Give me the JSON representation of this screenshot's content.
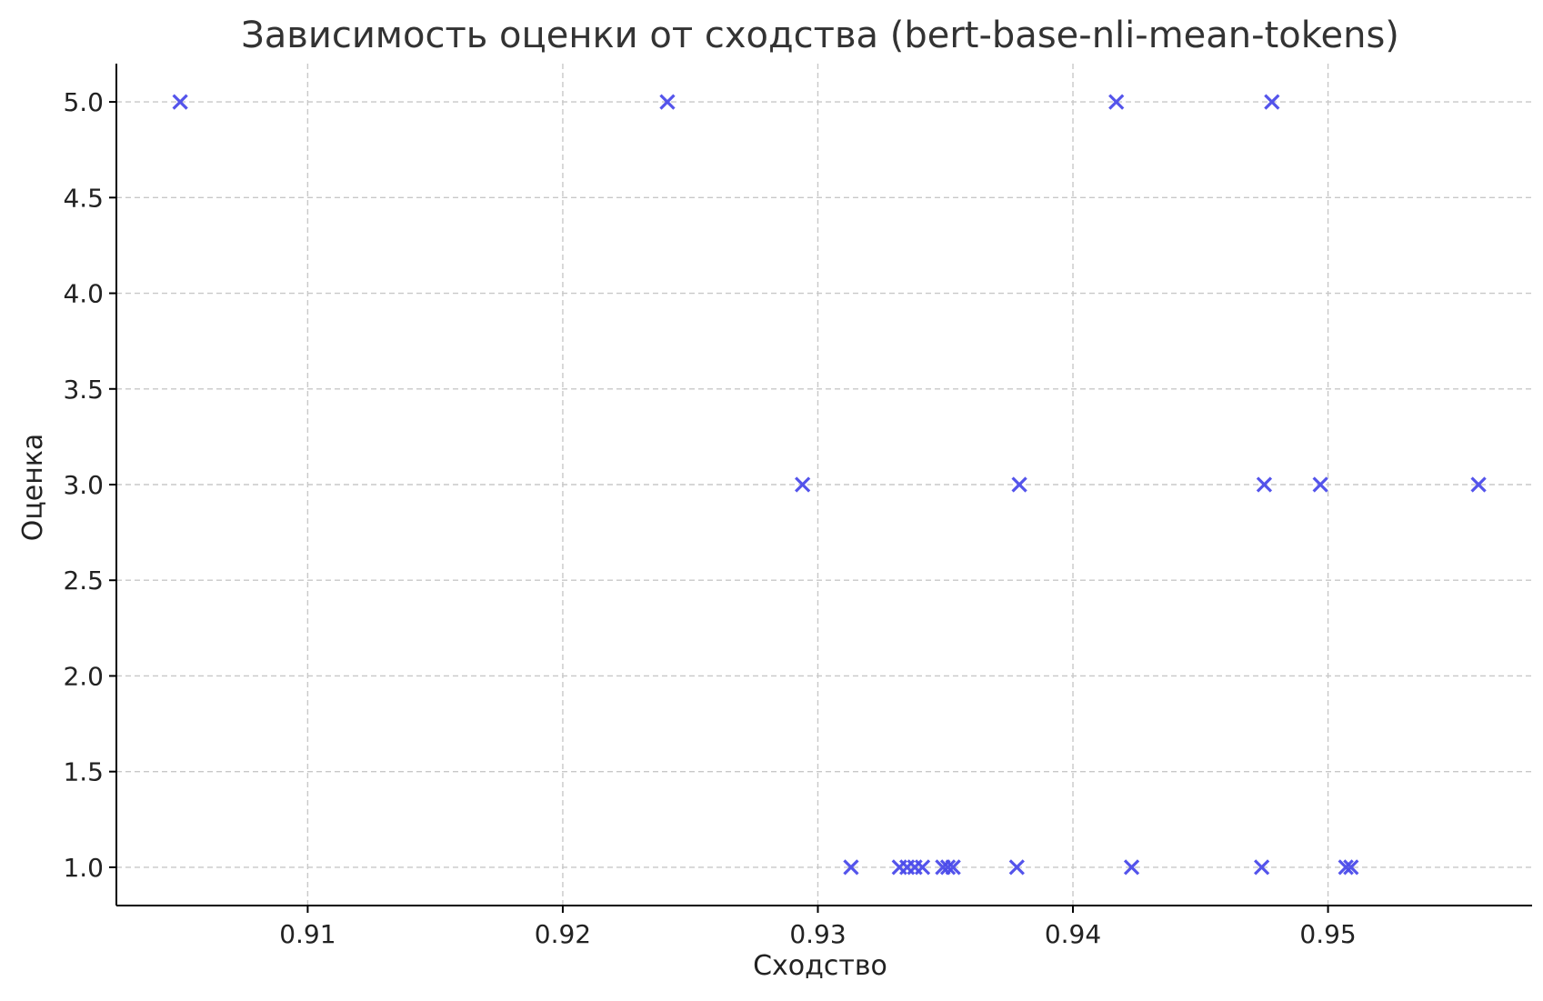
{
  "chart_data": {
    "type": "scatter",
    "title": "Зависимость оценки от сходства (bert-base-nli-mean-tokens)",
    "xlabel": "Сходство",
    "ylabel": "Оценка",
    "xlim": [
      0.9025,
      0.958
    ],
    "ylim": [
      0.8,
      5.2
    ],
    "xticks": [
      0.91,
      0.92,
      0.93,
      0.94,
      0.95
    ],
    "xtick_labels": [
      "0.91",
      "0.92",
      "0.93",
      "0.94",
      "0.95"
    ],
    "yticks": [
      1.0,
      1.5,
      2.0,
      2.5,
      3.0,
      3.5,
      4.0,
      4.5,
      5.0
    ],
    "ytick_labels": [
      "1.0",
      "1.5",
      "2.0",
      "2.5",
      "3.0",
      "3.5",
      "4.0",
      "4.5",
      "5.0"
    ],
    "grid": true,
    "marker": "x",
    "color": "#4b4bea",
    "points": [
      {
        "x": 0.905,
        "y": 5.0
      },
      {
        "x": 0.9241,
        "y": 5.0
      },
      {
        "x": 0.9417,
        "y": 5.0
      },
      {
        "x": 0.9478,
        "y": 5.0
      },
      {
        "x": 0.9294,
        "y": 3.0
      },
      {
        "x": 0.9379,
        "y": 3.0
      },
      {
        "x": 0.9475,
        "y": 3.0
      },
      {
        "x": 0.9497,
        "y": 3.0
      },
      {
        "x": 0.9559,
        "y": 3.0
      },
      {
        "x": 0.9313,
        "y": 1.0
      },
      {
        "x": 0.9332,
        "y": 1.0
      },
      {
        "x": 0.9335,
        "y": 1.0
      },
      {
        "x": 0.9338,
        "y": 1.0
      },
      {
        "x": 0.9341,
        "y": 1.0
      },
      {
        "x": 0.9349,
        "y": 1.0
      },
      {
        "x": 0.9351,
        "y": 1.0
      },
      {
        "x": 0.9353,
        "y": 1.0
      },
      {
        "x": 0.9378,
        "y": 1.0
      },
      {
        "x": 0.9423,
        "y": 1.0
      },
      {
        "x": 0.9474,
        "y": 1.0
      },
      {
        "x": 0.9507,
        "y": 1.0
      },
      {
        "x": 0.9509,
        "y": 1.0
      }
    ]
  }
}
